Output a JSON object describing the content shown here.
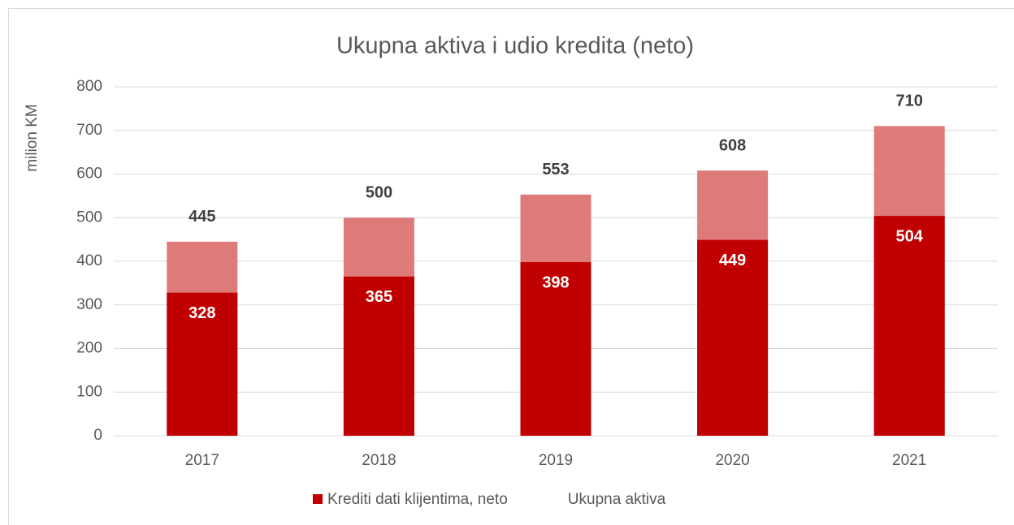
{
  "chart_data": {
    "type": "bar",
    "title": "Ukupna aktiva i udio kredita (neto)",
    "y_label": "milion KM",
    "categories": [
      "2017",
      "2018",
      "2019",
      "2020",
      "2021"
    ],
    "series": [
      {
        "name": "Krediti dati klijentima, neto",
        "color": "#c00000",
        "values": [
          328,
          365,
          398,
          449,
          504
        ]
      },
      {
        "name": "Ukupna aktiva",
        "color": "#df7a7a",
        "values": [
          445,
          500,
          553,
          608,
          710
        ]
      }
    ],
    "ylim": [
      0,
      800
    ],
    "yticks": [
      0,
      100,
      200,
      300,
      400,
      500,
      600,
      700,
      800
    ],
    "grid": true,
    "legend": "bottom"
  }
}
